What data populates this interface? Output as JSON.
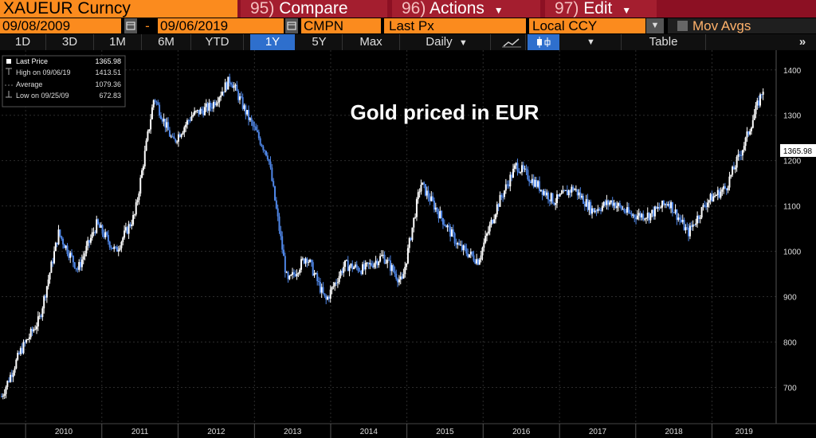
{
  "toolbar": {
    "ticker": "XAUEUR Curncy",
    "compare": {
      "num": "95)",
      "label": "Compare"
    },
    "actions": {
      "num": "96)",
      "label": "Actions"
    },
    "edit": {
      "num": "97)",
      "label": "Edit"
    }
  },
  "params": {
    "start_date": "09/08/2009",
    "dash": "-",
    "end_date": "09/06/2019",
    "cmpn": "CMPN",
    "field": "Last Px",
    "currency": "Local CCY",
    "mov_avgs": "Mov Avgs"
  },
  "ranges": {
    "items": [
      "1D",
      "3D",
      "1M",
      "6M",
      "YTD",
      "1Y",
      "5Y",
      "Max"
    ],
    "active": "1Y",
    "frequency": "Daily",
    "table_label": "Table",
    "more": "»"
  },
  "legend": {
    "rows": [
      {
        "label": "Last Price",
        "value": "1365.98"
      },
      {
        "label": "High on 09/06/19",
        "value": "1413.51"
      },
      {
        "label": "Average",
        "value": "1079.36"
      },
      {
        "label": "Low on 09/25/09",
        "value": "672.83"
      }
    ]
  },
  "colors": {
    "accent_amber": "#fb8b1e",
    "toolbar_red": "#a41e2f",
    "active_blue": "#2e6fcd",
    "candle_blue": "#4f86e6",
    "candle_white": "#ffffff"
  },
  "chart_data": {
    "type": "line",
    "title": "Gold priced in EUR",
    "style": "candlestick",
    "x": [
      "2009-09",
      "2009-12",
      "2010-03",
      "2010-06",
      "2010-09",
      "2010-12",
      "2011-03",
      "2011-06",
      "2011-09",
      "2011-12",
      "2012-03",
      "2012-06",
      "2012-09",
      "2012-12",
      "2013-03",
      "2013-06",
      "2013-09",
      "2013-12",
      "2014-03",
      "2014-06",
      "2014-09",
      "2014-12",
      "2015-03",
      "2015-06",
      "2015-09",
      "2015-12",
      "2016-03",
      "2016-06",
      "2016-09",
      "2016-12",
      "2017-03",
      "2017-06",
      "2017-09",
      "2017-12",
      "2018-03",
      "2018-06",
      "2018-09",
      "2018-12",
      "2019-03",
      "2019-06",
      "2019-09"
    ],
    "series": [
      {
        "values": [
          680,
          780,
          850,
          1040,
          960,
          1060,
          1000,
          1080,
          1340,
          1240,
          1300,
          1320,
          1380,
          1290,
          1210,
          930,
          990,
          890,
          970,
          960,
          990,
          930,
          1150,
          1080,
          1010,
          980,
          1100,
          1190,
          1150,
          1110,
          1140,
          1090,
          1110,
          1080,
          1080,
          1110,
          1040,
          1110,
          1140,
          1240,
          1366
        ]
      }
    ],
    "x_ticks": [
      "2010",
      "2011",
      "2012",
      "2013",
      "2014",
      "2015",
      "2016",
      "2017",
      "2018",
      "2019"
    ],
    "y_ticks": [
      700,
      800,
      900,
      1000,
      1100,
      1200,
      1300,
      1400
    ],
    "ylim": [
      620,
      1440
    ],
    "last_price_label": "1365.98",
    "grid": true,
    "legend_position": "top-left"
  }
}
